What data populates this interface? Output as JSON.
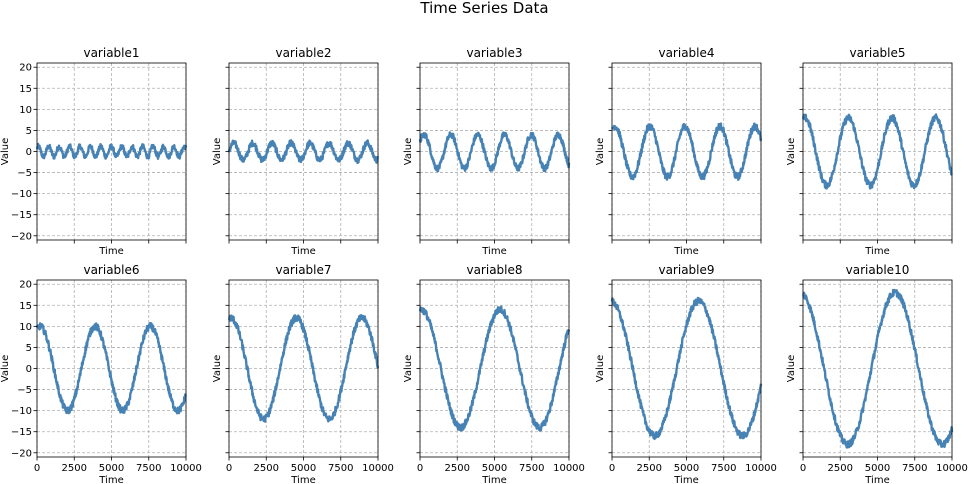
{
  "chart_data": {
    "type": "line",
    "title": "Time Series Data",
    "layout": {
      "rows": 2,
      "cols": 5
    },
    "xlabel": "Time",
    "ylabel": "Value",
    "xlim": [
      0,
      10000
    ],
    "ylim": [
      -21,
      21
    ],
    "xticks": [
      0,
      2500,
      5000,
      7500,
      10000
    ],
    "yticks": [
      -20,
      -15,
      -10,
      -5,
      0,
      5,
      10,
      15,
      20
    ],
    "grid": true,
    "color": "#4682b4",
    "panels": [
      {
        "name": "variable1",
        "amplitude": 1.2,
        "period": 700,
        "phase_deg": 45,
        "noise": 0.6
      },
      {
        "name": "variable2",
        "amplitude": 2.0,
        "period": 1280,
        "phase_deg": 0,
        "noise": 0.7
      },
      {
        "name": "variable3",
        "amplitude": 4.0,
        "period": 1800,
        "phase_deg": 35,
        "noise": 0.7
      },
      {
        "name": "variable4",
        "amplitude": 6.0,
        "period": 2350,
        "phase_deg": 60,
        "noise": 0.8
      },
      {
        "name": "variable5",
        "amplitude": 8.0,
        "period": 2930,
        "phase_deg": 75,
        "noise": 0.8
      },
      {
        "name": "variable6",
        "amplitude": 10.0,
        "period": 3700,
        "phase_deg": 70,
        "noise": 0.8
      },
      {
        "name": "variable7",
        "amplitude": 12.0,
        "period": 4400,
        "phase_deg": 80,
        "noise": 0.8
      },
      {
        "name": "variable8",
        "amplitude": 14.0,
        "period": 5300,
        "phase_deg": 85,
        "noise": 0.8
      },
      {
        "name": "variable9",
        "amplitude": 16.0,
        "period": 5900,
        "phase_deg": 95,
        "noise": 0.8
      },
      {
        "name": "variable10",
        "amplitude": 18.0,
        "period": 6350,
        "phase_deg": 100,
        "noise": 0.8
      }
    ]
  }
}
